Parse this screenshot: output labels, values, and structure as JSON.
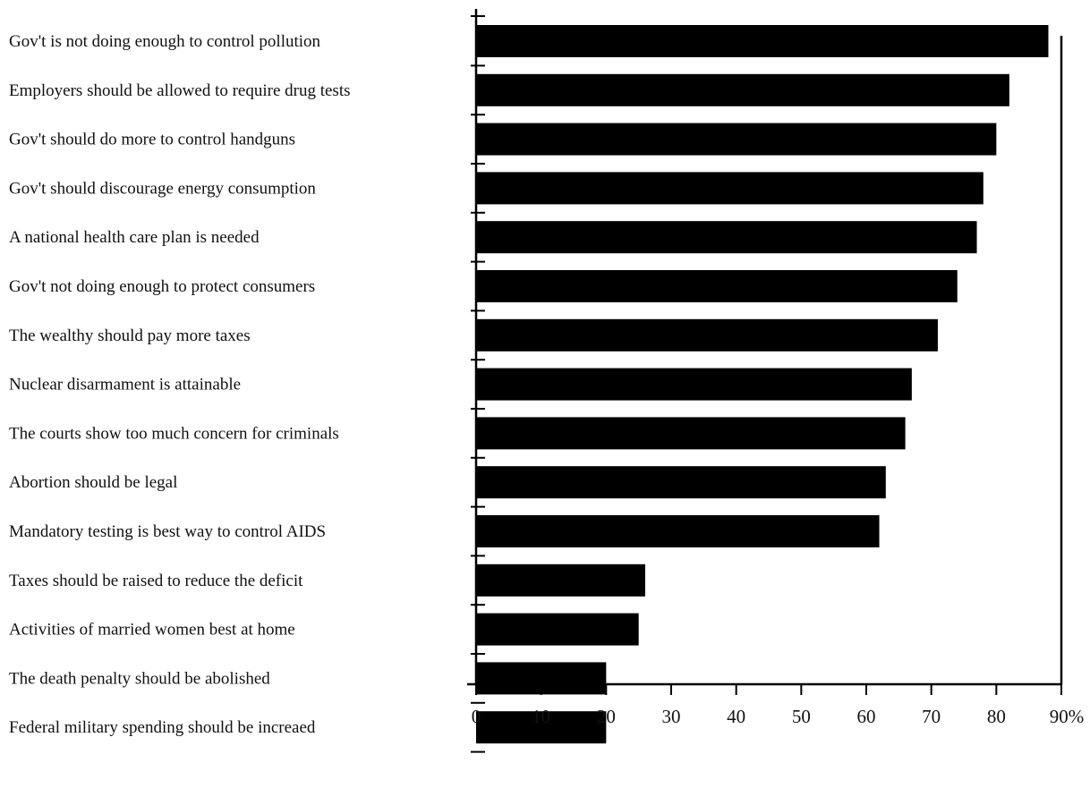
{
  "chart_data": {
    "type": "bar",
    "orientation": "horizontal",
    "title": "",
    "xlabel": "",
    "ylabel": "",
    "categories": [
      "Gov't is not doing enough to control pollution",
      "Employers should be allowed to require drug tests",
      "Gov't should do more to control handguns",
      "Gov't should discourage energy consumption",
      "A national health care plan is needed",
      "Gov't not doing enough to protect consumers",
      "The wealthy should pay more taxes",
      "Nuclear disarmament is attainable",
      "The courts show too much concern for criminals",
      "Abortion should be legal",
      "Mandatory testing is best way to control AIDS",
      "Taxes should be raised to reduce the deficit",
      "Activities of married women best at home",
      "The death penalty should be abolished",
      "Federal military spending should be increaed"
    ],
    "values": [
      88,
      82,
      80,
      78,
      77,
      74,
      71,
      67,
      66,
      63,
      62,
      26,
      25,
      20,
      20
    ],
    "xlim": [
      0,
      90
    ],
    "x_ticks": [
      "0",
      "10",
      "20",
      "30",
      "40",
      "50",
      "60",
      "70",
      "80",
      "90%"
    ],
    "grid": false,
    "legend": "none",
    "bar_color": "#000000"
  }
}
